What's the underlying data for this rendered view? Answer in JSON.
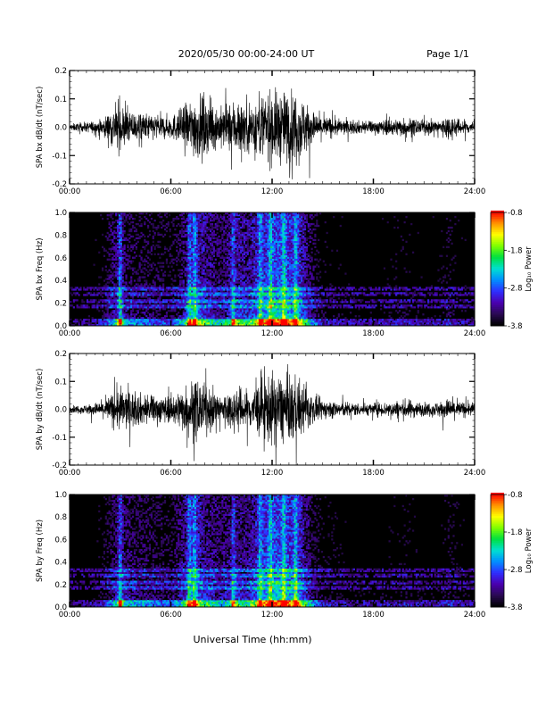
{
  "header": {
    "title": "2020/05/30   00:00-24:00 UT",
    "page": "Page 1/1"
  },
  "xlabel": "Universal Time (hh:mm)",
  "colors": {
    "trace": "#000000",
    "frame": "#000000",
    "background": "#ffffff"
  },
  "colorbar": {
    "label": "Log₁₀ Power",
    "ticks": [
      "-0.8",
      "-1.8",
      "-2.8",
      "-3.8"
    ],
    "palette": [
      "#000000",
      "#2a0a54",
      "#4b00b0",
      "#2f2fff",
      "#0090ff",
      "#00e0d0",
      "#00e040",
      "#80ff00",
      "#ffff00",
      "#ff9000",
      "#ff0000"
    ]
  },
  "chart_data": [
    {
      "type": "line",
      "ylabel": "SPA bx dB/dt (nT/sec)",
      "x_ticks": [
        "00:00",
        "06:00",
        "12:00",
        "18:00",
        "24:00"
      ],
      "y_ticks": [
        "0.2",
        "0.1",
        "0.0",
        "-0.1",
        "-0.2"
      ],
      "xlim": [
        0,
        24
      ],
      "ylim": [
        -0.2,
        0.2
      ],
      "envelope": {
        "x_hours": [
          0,
          1,
          2,
          2.5,
          3,
          3.5,
          4,
          5,
          6,
          6.5,
          7,
          7.5,
          8,
          8.5,
          9,
          10,
          10.5,
          11,
          11.5,
          12,
          12.5,
          13,
          13.5,
          14,
          14.5,
          15,
          16,
          17,
          18,
          19,
          20,
          21,
          22,
          22.5,
          23,
          24
        ],
        "amplitude": [
          0.02,
          0.03,
          0.05,
          0.12,
          0.14,
          0.1,
          0.09,
          0.08,
          0.07,
          0.1,
          0.15,
          0.2,
          0.18,
          0.14,
          0.12,
          0.18,
          0.16,
          0.18,
          0.2,
          0.22,
          0.22,
          0.22,
          0.22,
          0.16,
          0.09,
          0.07,
          0.05,
          0.04,
          0.04,
          0.05,
          0.06,
          0.04,
          0.05,
          0.08,
          0.05,
          0.04
        ]
      }
    },
    {
      "type": "heatmap",
      "ylabel": "SPA bx Freq (Hz)",
      "x_ticks": [
        "00:00",
        "06:00",
        "12:00",
        "18:00",
        "24:00"
      ],
      "y_ticks": [
        "1.0",
        "0.8",
        "0.6",
        "0.4",
        "0.2",
        "0.0"
      ],
      "xlim": [
        0,
        24
      ],
      "ylim": [
        0,
        1.0
      ],
      "zlim": [
        -3.8,
        -0.8
      ],
      "activity_hours": [
        0,
        1,
        2,
        2.5,
        3,
        3.5,
        4,
        5,
        6,
        6.5,
        7,
        7.5,
        8,
        8.5,
        9,
        10,
        10.5,
        11,
        11.5,
        12,
        12.5,
        13,
        13.5,
        14,
        14.5,
        15,
        16,
        17,
        18,
        19,
        20,
        21,
        22,
        22.5,
        23,
        24
      ],
      "activity_level": [
        0.05,
        0.08,
        0.15,
        0.35,
        0.45,
        0.3,
        0.28,
        0.25,
        0.2,
        0.3,
        0.45,
        0.6,
        0.5,
        0.4,
        0.35,
        0.5,
        0.45,
        0.55,
        0.65,
        0.75,
        0.75,
        0.7,
        0.65,
        0.45,
        0.25,
        0.15,
        0.12,
        0.1,
        0.1,
        0.12,
        0.14,
        0.1,
        0.12,
        0.18,
        0.12,
        0.1
      ],
      "bursts_hours": [
        3.0,
        7.1,
        7.4,
        9.7,
        11.3,
        11.9,
        12.7,
        13.4
      ]
    },
    {
      "type": "line",
      "ylabel": "SPA by dB/dt (nT/sec)",
      "x_ticks": [
        "00:00",
        "06:00",
        "12:00",
        "18:00",
        "24:00"
      ],
      "y_ticks": [
        "0.2",
        "0.1",
        "0.0",
        "-0.1",
        "-0.2"
      ],
      "xlim": [
        0,
        24
      ],
      "ylim": [
        -0.2,
        0.2
      ],
      "envelope": {
        "x_hours": [
          0,
          1,
          2,
          2.5,
          3,
          3.5,
          4,
          5,
          6,
          6.5,
          7,
          7.5,
          8,
          8.5,
          9,
          10,
          10.5,
          11,
          11.5,
          12,
          12.5,
          13,
          13.5,
          14,
          14.5,
          15,
          16,
          17,
          18,
          19,
          20,
          21,
          22,
          22.5,
          23,
          24
        ],
        "amplitude": [
          0.02,
          0.03,
          0.05,
          0.1,
          0.14,
          0.12,
          0.1,
          0.09,
          0.08,
          0.12,
          0.16,
          0.2,
          0.14,
          0.12,
          0.1,
          0.14,
          0.12,
          0.15,
          0.2,
          0.22,
          0.22,
          0.2,
          0.2,
          0.14,
          0.08,
          0.06,
          0.05,
          0.04,
          0.04,
          0.05,
          0.06,
          0.04,
          0.05,
          0.07,
          0.05,
          0.04
        ]
      }
    },
    {
      "type": "heatmap",
      "ylabel": "SPA by Freq (Hz)",
      "x_ticks": [
        "00:00",
        "06:00",
        "12:00",
        "18:00",
        "24:00"
      ],
      "y_ticks": [
        "1.0",
        "0.8",
        "0.6",
        "0.4",
        "0.2",
        "0.0"
      ],
      "xlim": [
        0,
        24
      ],
      "ylim": [
        0,
        1.0
      ],
      "zlim": [
        -3.8,
        -0.8
      ],
      "activity_hours": [
        0,
        1,
        2,
        2.5,
        3,
        3.5,
        4,
        5,
        6,
        6.5,
        7,
        7.5,
        8,
        8.5,
        9,
        10,
        10.5,
        11,
        11.5,
        12,
        12.5,
        13,
        13.5,
        14,
        14.5,
        15,
        16,
        17,
        18,
        19,
        20,
        21,
        22,
        22.5,
        23,
        24
      ],
      "activity_level": [
        0.05,
        0.08,
        0.15,
        0.3,
        0.45,
        0.35,
        0.3,
        0.28,
        0.22,
        0.35,
        0.5,
        0.6,
        0.45,
        0.4,
        0.35,
        0.45,
        0.4,
        0.55,
        0.65,
        0.75,
        0.75,
        0.7,
        0.65,
        0.45,
        0.25,
        0.15,
        0.12,
        0.1,
        0.1,
        0.12,
        0.14,
        0.1,
        0.12,
        0.18,
        0.12,
        0.1
      ],
      "bursts_hours": [
        3.0,
        7.1,
        7.4,
        9.7,
        11.3,
        11.9,
        12.7,
        13.4
      ]
    }
  ]
}
